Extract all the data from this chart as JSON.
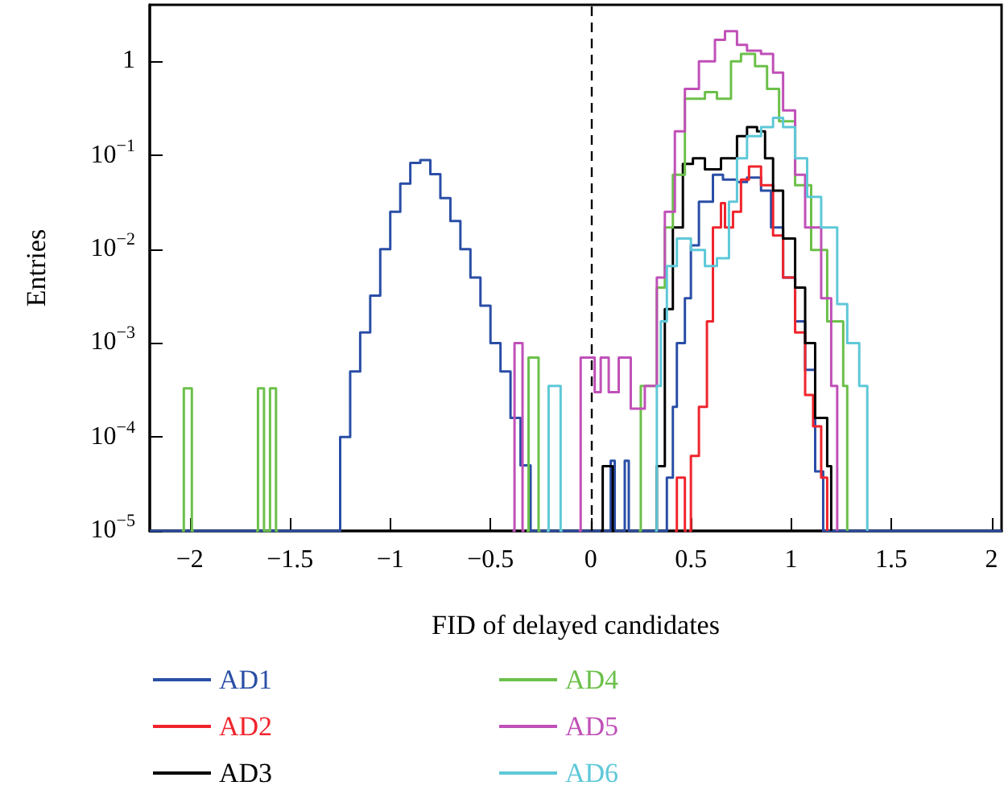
{
  "chart_data": {
    "type": "step",
    "xlabel": "FID of delayed candidates",
    "ylabel": "Entries",
    "log": "y",
    "grid": false,
    "legend": "bottom left",
    "marker": "none",
    "xlim": [
      -2.2,
      2.05
    ],
    "xticks": [
      {
        "value": -2,
        "label": "−2"
      },
      {
        "value": -1.5,
        "label": "−1.5"
      },
      {
        "value": -1,
        "label": "−1"
      },
      {
        "value": -0.5,
        "label": "−0.5"
      },
      0,
      0.5,
      1,
      1.5,
      2
    ],
    "ylim": [
      1e-05,
      4
    ],
    "yticks": [
      {
        "value": 1e-05,
        "label": "10$^{−5}$"
      },
      {
        "value": 0.0001,
        "label": "10$^{−4}$"
      },
      {
        "value": 0.001,
        "label": "10$^{−3}$"
      },
      {
        "value": 0.01,
        "label": "10$^{−2}$"
      },
      {
        "value": 0.1,
        "label": "10$^{−1}$"
      },
      1
    ],
    "ref_lines": [
      {
        "axis": "x",
        "value": 0,
        "color": "#000000",
        "line_style": "dashed"
      }
    ],
    "series": [
      {
        "name": "AD1",
        "color": "#2a4ea6",
        "x": [
          -2.2,
          -1.3,
          -1.25,
          -1.2,
          -1.15,
          -1.1,
          -1.05,
          -1,
          -0.95,
          -0.9,
          -0.85,
          -0.8,
          -0.75,
          -0.7,
          -0.65,
          -0.6,
          -0.55,
          -0.5,
          -0.45,
          -0.4,
          -0.35,
          -0.3,
          0.1,
          0.12,
          0.17,
          0.19,
          0.38,
          0.41,
          0.43,
          0.47,
          0.5,
          0.54,
          0.61,
          0.66,
          0.73,
          0.78,
          0.85,
          0.9,
          0.96,
          1.02,
          1.07,
          1.12,
          1.16,
          2.05
        ],
        "values": [
          1e-05,
          1e-05,
          0.0001,
          0.0005,
          0.0013,
          0.0032,
          0.01,
          0.025,
          0.05,
          0.083,
          0.089,
          0.063,
          0.035,
          0.02,
          0.01,
          0.005,
          0.0025,
          0.001,
          0.0005,
          0.00016,
          5e-05,
          1e-05,
          5.6e-05,
          1e-05,
          5.6e-05,
          1e-05,
          3.7e-05,
          0.00021,
          0.001,
          0.003,
          0.011,
          0.032,
          0.062,
          0.055,
          0.052,
          0.058,
          0.042,
          0.017,
          0.005,
          0.0017,
          0.00052,
          4.3e-05,
          1e-05,
          1e-05
        ]
      },
      {
        "name": "AD2",
        "color": "#f0242c",
        "x": [
          0.42,
          0.43,
          0.47,
          0.48,
          0.49,
          0.5,
          0.54,
          0.58,
          0.61,
          0.65,
          0.67,
          0.71,
          0.75,
          0.79,
          0.85,
          0.91,
          0.96,
          1.02,
          1.07,
          1.11,
          1.15,
          1.18
        ],
        "values": [
          1e-05,
          3.7e-05,
          1e-05,
          null,
          1e-05,
          6.3e-05,
          0.00021,
          0.0017,
          0.017,
          0.031,
          0.017,
          0.025,
          0.055,
          0.076,
          0.048,
          0.014,
          0.005,
          0.0013,
          0.00028,
          0.00013,
          3.7e-05,
          1e-05
        ]
      },
      {
        "name": "AD3",
        "color": "#000000",
        "x": [
          0.05,
          0.06,
          0.11,
          0.12,
          0.32,
          0.33,
          0.37,
          0.41,
          0.46,
          0.51,
          0.57,
          0.65,
          0.73,
          0.78,
          0.83,
          0.87,
          0.91,
          0.96,
          1.02,
          1.07,
          1.12,
          1.18,
          1.2
        ],
        "values": [
          1e-05,
          4.9e-05,
          1e-05,
          null,
          1e-05,
          4.9e-05,
          0.0023,
          0.017,
          0.081,
          0.093,
          0.071,
          0.093,
          0.16,
          0.2,
          0.18,
          0.093,
          0.042,
          0.013,
          0.0039,
          0.001,
          0.00016,
          4.9e-05,
          1e-05
        ]
      },
      {
        "name": "AD4",
        "color": "#6cc04a",
        "x": [
          -2.04,
          -2.03,
          -1.99,
          -1.98,
          -1.67,
          -1.66,
          -1.63,
          -1.6,
          -1.57,
          -1.56,
          -0.32,
          -0.31,
          -0.26,
          -0.25,
          0.24,
          0.25,
          0.33,
          0.37,
          0.41,
          0.47,
          0.57,
          0.63,
          0.7,
          0.75,
          0.82,
          0.88,
          0.94,
          1.02,
          1.1,
          1.18,
          1.26,
          1.28
        ],
        "values": [
          1e-05,
          0.00033,
          1e-05,
          null,
          1e-05,
          0.00033,
          1e-05,
          0.00033,
          1e-05,
          null,
          1e-05,
          0.0007,
          1e-05,
          null,
          1e-05,
          0.00035,
          0.0039,
          0.017,
          0.062,
          0.4,
          0.47,
          0.4,
          1,
          1.2,
          0.89,
          0.51,
          0.23,
          0.048,
          0.0098,
          0.0017,
          0.00035,
          1e-05
        ]
      },
      {
        "name": "AD5",
        "color": "#c050b8",
        "x": [
          -0.39,
          -0.38,
          -0.34,
          -0.33,
          -0.06,
          -0.05,
          0.02,
          0.05,
          0.09,
          0.14,
          0.2,
          0.27,
          0.33,
          0.37,
          0.42,
          0.47,
          0.54,
          0.62,
          0.67,
          0.73,
          0.78,
          0.85,
          0.91,
          0.96,
          1.02,
          1.07,
          1.15,
          1.2,
          1.23
        ],
        "values": [
          1e-05,
          0.001,
          1e-05,
          null,
          1e-05,
          0.0007,
          0.0003,
          0.0007,
          0.0003,
          0.0007,
          0.0002,
          0.00035,
          0.005,
          0.025,
          0.18,
          0.51,
          1,
          1.7,
          2.1,
          1.5,
          1.3,
          1.2,
          0.76,
          0.3,
          0.062,
          0.017,
          0.003,
          0.00035,
          1e-05
        ]
      },
      {
        "name": "AD6",
        "color": "#5ec8d8",
        "x": [
          -0.22,
          -0.21,
          -0.15,
          -0.14,
          0.32,
          0.33,
          0.35,
          0.38,
          0.43,
          0.5,
          0.57,
          0.63,
          0.69,
          0.73,
          0.78,
          0.85,
          0.91,
          0.96,
          1.02,
          1.08,
          1.15,
          1.23,
          1.28,
          1.34,
          1.38
        ],
        "values": [
          1e-05,
          0.00035,
          1e-05,
          null,
          1e-05,
          0.00035,
          0.0017,
          0.0066,
          0.013,
          0.0098,
          0.0066,
          0.008,
          0.032,
          0.093,
          0.16,
          0.2,
          0.25,
          0.2,
          0.093,
          0.036,
          0.017,
          0.0026,
          0.001,
          0.00035,
          1e-05
        ]
      }
    ]
  }
}
